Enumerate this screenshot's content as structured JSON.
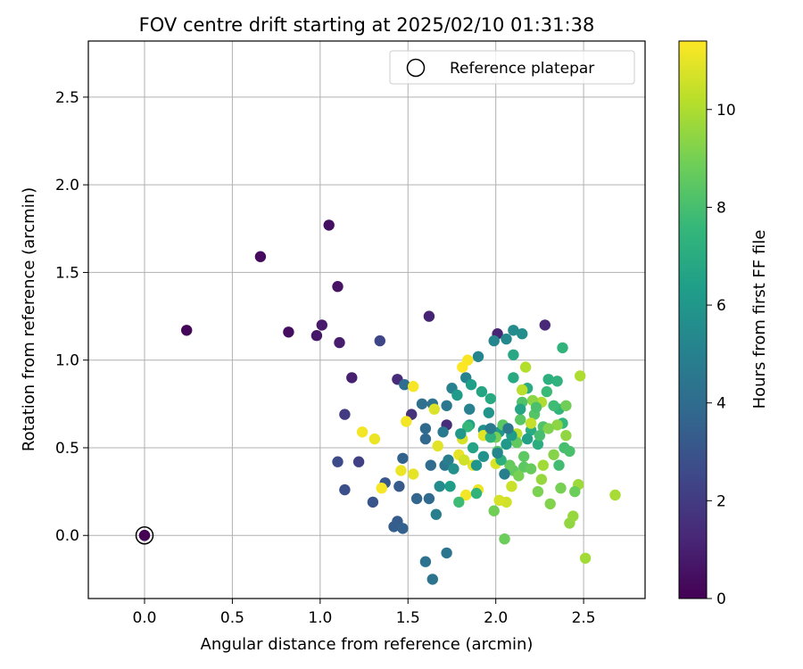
{
  "chart_data": {
    "type": "scatter",
    "title": "FOV centre drift starting at 2025/02/10 01:31:38",
    "xlabel": "Angular distance from reference (arcmin)",
    "ylabel": "Rotation from reference (arcmin)",
    "xlim": [
      -0.32,
      2.85
    ],
    "ylim": [
      -0.36,
      2.82
    ],
    "xticks": [
      "0.0",
      "0.5",
      "1.0",
      "1.5",
      "2.0",
      "2.5"
    ],
    "xtick_values": [
      0,
      0.5,
      1,
      1.5,
      2,
      2.5
    ],
    "yticks": [
      "0.0",
      "0.5",
      "1.0",
      "1.5",
      "2.0",
      "2.5"
    ],
    "ytick_values": [
      0,
      0.5,
      1,
      1.5,
      2,
      2.5
    ],
    "grid": true,
    "legend": {
      "position": "top-right",
      "entries": [
        "Reference platepar"
      ]
    },
    "reference_point": {
      "x": 0,
      "y": 0,
      "hours": 0
    },
    "colorbar": {
      "label": "Hours from first FF file",
      "colormap": "viridis",
      "range": [
        0,
        11.4
      ],
      "ticks": [
        "0",
        "2",
        "4",
        "6",
        "8",
        "10"
      ],
      "tick_values": [
        0,
        2,
        4,
        6,
        8,
        10
      ]
    },
    "colormap_stops": [
      "#440154",
      "#482878",
      "#3e4989",
      "#31688e",
      "#26828e",
      "#1f9e89",
      "#35b779",
      "#6ece58",
      "#b5de2b",
      "#fde725"
    ],
    "points": [
      [
        0.0,
        0.0,
        0.0
      ],
      [
        0.24,
        1.17,
        0.2
      ],
      [
        0.66,
        1.59,
        0.3
      ],
      [
        0.82,
        1.16,
        0.4
      ],
      [
        1.05,
        1.77,
        0.5
      ],
      [
        1.1,
        1.42,
        0.6
      ],
      [
        0.98,
        1.14,
        0.7
      ],
      [
        1.01,
        1.2,
        0.8
      ],
      [
        1.11,
        1.1,
        0.9
      ],
      [
        1.18,
        0.9,
        1.0
      ],
      [
        1.62,
        1.25,
        1.1
      ],
      [
        2.01,
        1.15,
        1.2
      ],
      [
        2.28,
        1.2,
        1.3
      ],
      [
        1.44,
        0.89,
        1.4
      ],
      [
        1.72,
        0.63,
        1.5
      ],
      [
        1.52,
        0.69,
        1.6
      ],
      [
        1.14,
        0.69,
        2.0
      ],
      [
        1.22,
        0.42,
        2.2
      ],
      [
        1.34,
        1.11,
        2.4
      ],
      [
        1.1,
        0.42,
        2.6
      ],
      [
        1.14,
        0.26,
        2.8
      ],
      [
        1.3,
        0.19,
        3.0
      ],
      [
        1.37,
        0.3,
        3.1
      ],
      [
        1.45,
        0.28,
        3.2
      ],
      [
        1.44,
        0.08,
        3.3
      ],
      [
        1.42,
        0.05,
        3.4
      ],
      [
        1.47,
        0.04,
        3.5
      ],
      [
        1.47,
        0.44,
        3.6
      ],
      [
        1.55,
        0.21,
        3.7
      ],
      [
        1.6,
        0.55,
        3.8
      ],
      [
        1.6,
        0.61,
        3.9
      ],
      [
        1.62,
        0.21,
        3.9
      ],
      [
        1.63,
        0.4,
        4.0
      ],
      [
        1.48,
        0.86,
        4.1
      ],
      [
        1.58,
        0.75,
        4.2
      ],
      [
        1.64,
        0.75,
        4.3
      ],
      [
        1.6,
        -0.15,
        4.3
      ],
      [
        1.64,
        -0.25,
        4.4
      ],
      [
        1.72,
        -0.1,
        4.5
      ],
      [
        1.71,
        0.4,
        4.5
      ],
      [
        1.72,
        0.74,
        4.6
      ],
      [
        1.7,
        0.59,
        4.7
      ],
      [
        1.73,
        0.43,
        4.8
      ],
      [
        1.66,
        0.12,
        4.9
      ],
      [
        1.75,
        0.84,
        5.0
      ],
      [
        1.83,
        0.9,
        5.1
      ],
      [
        1.9,
        1.02,
        5.2
      ],
      [
        1.99,
        1.11,
        5.3
      ],
      [
        2.06,
        1.12,
        5.4
      ],
      [
        2.1,
        1.17,
        5.5
      ],
      [
        2.15,
        1.15,
        5.6
      ],
      [
        1.93,
        0.6,
        5.7
      ],
      [
        1.93,
        0.45,
        5.8
      ],
      [
        1.96,
        0.7,
        5.9
      ],
      [
        2.02,
        0.59,
        6.0
      ],
      [
        2.06,
        0.52,
        6.1
      ],
      [
        1.78,
        0.8,
        6.2
      ],
      [
        1.74,
        0.28,
        6.3
      ],
      [
        1.86,
        0.86,
        6.4
      ],
      [
        1.85,
        0.63,
        6.5
      ],
      [
        1.87,
        0.5,
        6.6
      ],
      [
        1.92,
        0.82,
        6.7
      ],
      [
        2.1,
        1.03,
        6.8
      ],
      [
        2.1,
        0.9,
        6.9
      ],
      [
        2.18,
        0.84,
        7.0
      ],
      [
        2.2,
        0.6,
        7.0
      ],
      [
        2.24,
        0.52,
        7.1
      ],
      [
        2.3,
        0.89,
        7.2
      ],
      [
        2.35,
        0.88,
        7.3
      ],
      [
        2.38,
        1.07,
        7.4
      ],
      [
        2.36,
        0.72,
        7.5
      ],
      [
        2.38,
        0.64,
        7.6
      ],
      [
        2.29,
        0.82,
        7.7
      ],
      [
        2.33,
        0.74,
        7.8
      ],
      [
        2.36,
        0.4,
        7.9
      ],
      [
        2.39,
        0.5,
        8.0
      ],
      [
        2.42,
        0.48,
        8.1
      ],
      [
        2.27,
        0.62,
        8.2
      ],
      [
        2.22,
        0.69,
        8.3
      ],
      [
        2.14,
        0.66,
        8.4
      ],
      [
        2.16,
        0.39,
        8.5
      ],
      [
        2.1,
        0.37,
        8.6
      ],
      [
        2.2,
        0.38,
        8.7
      ],
      [
        2.05,
        -0.02,
        8.8
      ],
      [
        1.99,
        0.14,
        8.9
      ],
      [
        2.0,
        0.56,
        9.0
      ],
      [
        2.13,
        0.34,
        9.0
      ],
      [
        2.24,
        0.25,
        9.1
      ],
      [
        2.31,
        0.18,
        9.2
      ],
      [
        2.33,
        0.46,
        9.3
      ],
      [
        2.35,
        0.63,
        9.4
      ],
      [
        2.4,
        0.57,
        9.5
      ],
      [
        2.42,
        0.07,
        9.5
      ],
      [
        2.44,
        0.11,
        9.6
      ],
      [
        2.47,
        0.29,
        9.7
      ],
      [
        2.51,
        -0.13,
        9.8
      ],
      [
        2.68,
        0.23,
        9.9
      ],
      [
        2.48,
        0.91,
        10.0
      ],
      [
        2.17,
        0.96,
        10.1
      ],
      [
        2.15,
        0.83,
        10.2
      ],
      [
        2.12,
        0.58,
        10.3
      ],
      [
        2.2,
        0.64,
        10.4
      ],
      [
        2.09,
        0.28,
        10.5
      ],
      [
        2.06,
        0.19,
        10.6
      ],
      [
        2.02,
        0.2,
        10.7
      ],
      [
        2.0,
        0.41,
        10.8
      ],
      [
        1.93,
        0.57,
        10.9
      ],
      [
        1.87,
        0.4,
        11.0
      ],
      [
        1.9,
        0.26,
        11.1
      ],
      [
        1.83,
        0.23,
        11.2
      ],
      [
        1.84,
        1.0,
        11.3
      ],
      [
        1.81,
        0.96,
        11.4
      ],
      [
        1.53,
        0.85,
        11.3
      ],
      [
        1.49,
        0.65,
        11.2
      ],
      [
        1.46,
        0.37,
        11.1
      ],
      [
        1.53,
        0.35,
        11.0
      ],
      [
        1.35,
        0.27,
        11.3
      ],
      [
        1.24,
        0.59,
        11.2
      ],
      [
        1.31,
        0.55,
        11.1
      ],
      [
        1.65,
        0.72,
        10.8
      ],
      [
        1.67,
        0.51,
        10.9
      ],
      [
        1.79,
        0.46,
        11.0
      ],
      [
        1.81,
        0.55,
        10.7
      ],
      [
        1.82,
        0.43,
        10.6
      ],
      [
        2.26,
        0.76,
        10.0
      ],
      [
        2.27,
        0.4,
        9.8
      ],
      [
        2.26,
        0.32,
        9.6
      ],
      [
        2.21,
        0.77,
        9.4
      ],
      [
        2.3,
        0.61,
        9.2
      ],
      [
        2.37,
        0.27,
        9.0
      ],
      [
        2.4,
        0.74,
        8.9
      ],
      [
        2.45,
        0.25,
        8.8
      ],
      [
        2.08,
        0.4,
        8.7
      ],
      [
        2.12,
        0.53,
        8.6
      ],
      [
        2.16,
        0.45,
        8.5
      ],
      [
        2.04,
        0.63,
        8.4
      ],
      [
        2.01,
        0.48,
        8.3
      ],
      [
        2.15,
        0.76,
        8.2
      ],
      [
        2.23,
        0.73,
        8.1
      ],
      [
        2.25,
        0.57,
        8.0
      ],
      [
        1.79,
        0.19,
        7.8
      ],
      [
        1.84,
        0.62,
        7.6
      ],
      [
        1.89,
        0.24,
        7.4
      ],
      [
        1.97,
        0.56,
        7.3
      ],
      [
        2.03,
        0.43,
        7.2
      ],
      [
        1.97,
        0.78,
        6.9
      ],
      [
        2.14,
        0.72,
        6.7
      ],
      [
        2.18,
        0.55,
        6.5
      ],
      [
        2.09,
        0.57,
        6.3
      ],
      [
        1.8,
        0.58,
        6.1
      ],
      [
        1.89,
        0.4,
        5.9
      ],
      [
        1.76,
        0.38,
        5.7
      ],
      [
        1.68,
        0.28,
        5.5
      ],
      [
        2.01,
        0.47,
        5.2
      ],
      [
        2.05,
        0.35,
        4.9
      ],
      [
        1.97,
        0.61,
        4.7
      ],
      [
        2.07,
        0.61,
        4.6
      ],
      [
        1.85,
        0.72,
        5.0
      ]
    ]
  }
}
